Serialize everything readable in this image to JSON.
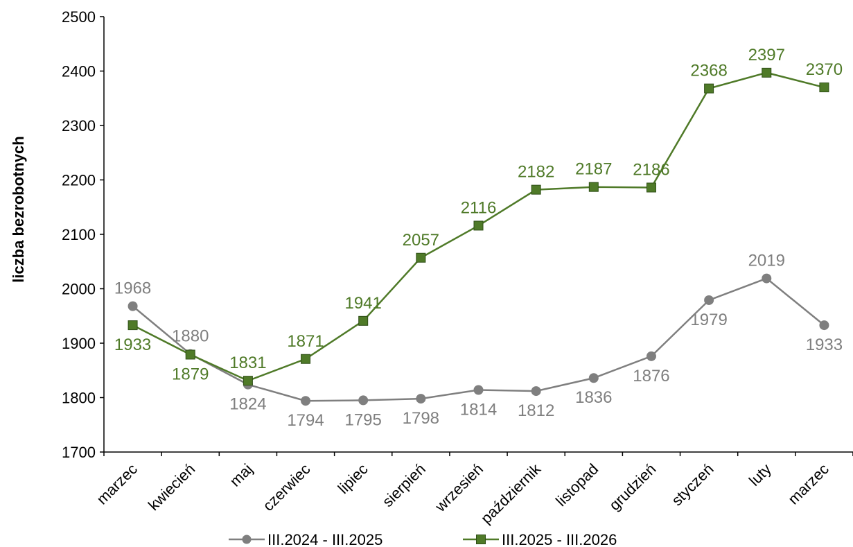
{
  "chart_data": {
    "type": "line",
    "title": "",
    "xlabel": "",
    "ylabel": "liczba bezrobotnych",
    "ylim": [
      1700,
      2500
    ],
    "yticks": [
      1700,
      1800,
      1900,
      2000,
      2100,
      2200,
      2300,
      2400,
      2500
    ],
    "grid": false,
    "legend_position": "bottom",
    "categories": [
      "marzec",
      "kwiecień",
      "maj",
      "czerwiec",
      "lipiec",
      "sierpień",
      "wrzesień",
      "październik",
      "listopad",
      "grudzień",
      "styczeń",
      "luty",
      "marzec"
    ],
    "series": [
      {
        "name": "III.2024 - III.2025",
        "color": "#7f7f7f",
        "marker": "circle",
        "label_position": [
          "above",
          "above",
          "below",
          "below",
          "below",
          "below",
          "below",
          "below",
          "below",
          "below",
          "below",
          "above",
          "below"
        ],
        "values": [
          1968,
          1880,
          1824,
          1794,
          1795,
          1798,
          1814,
          1812,
          1836,
          1876,
          1979,
          2019,
          1933
        ]
      },
      {
        "name": "III.2025 - III.2026",
        "color": "#4f7a28",
        "marker": "square",
        "label_position": [
          "below",
          "below",
          "above",
          "above",
          "above",
          "above",
          "above",
          "above",
          "above",
          "above",
          "above",
          "above",
          "above"
        ],
        "values": [
          1933,
          1879,
          1831,
          1871,
          1941,
          2057,
          2116,
          2182,
          2187,
          2186,
          2368,
          2397,
          2370
        ]
      }
    ]
  }
}
